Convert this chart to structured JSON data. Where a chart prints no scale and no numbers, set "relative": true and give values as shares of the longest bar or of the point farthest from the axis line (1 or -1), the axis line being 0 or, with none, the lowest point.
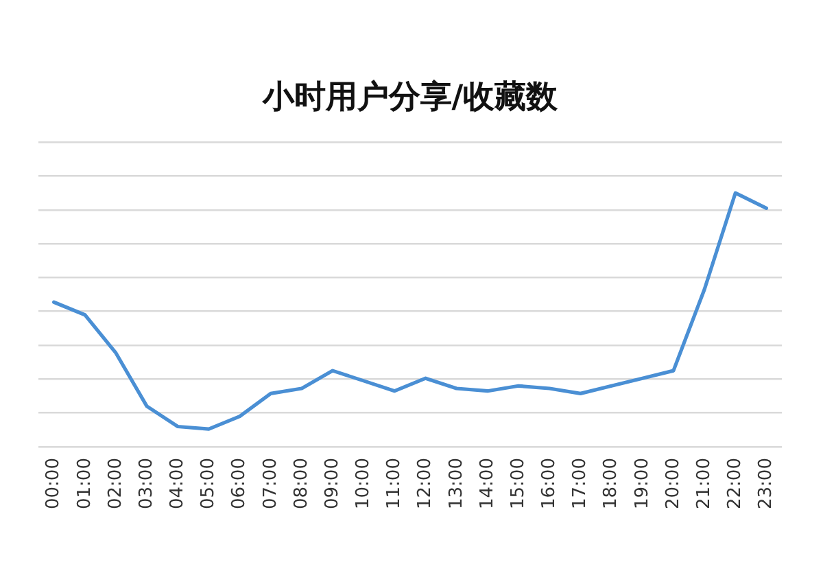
{
  "chart_data": {
    "type": "line",
    "title": "小时用户分享/收藏数",
    "categories": [
      "00:00",
      "01:00",
      "02:00",
      "03:00",
      "04:00",
      "05:00",
      "06:00",
      "07:00",
      "08:00",
      "09:00",
      "10:00",
      "11:00",
      "12:00",
      "13:00",
      "14:00",
      "15:00",
      "16:00",
      "17:00",
      "18:00",
      "19:00",
      "20:00",
      "21:00",
      "22:00",
      "23:00"
    ],
    "values": [
      0.57,
      0.52,
      0.37,
      0.16,
      0.08,
      0.07,
      0.12,
      0.21,
      0.23,
      0.3,
      0.26,
      0.22,
      0.27,
      0.23,
      0.22,
      0.24,
      0.23,
      0.21,
      0.24,
      0.27,
      0.3,
      0.62,
      1,
      0.94
    ],
    "color": "#4a8fd4",
    "relative": true,
    "grid": "y",
    "tick_labels": "x",
    "marker": "none",
    "line_style": "solid"
  }
}
